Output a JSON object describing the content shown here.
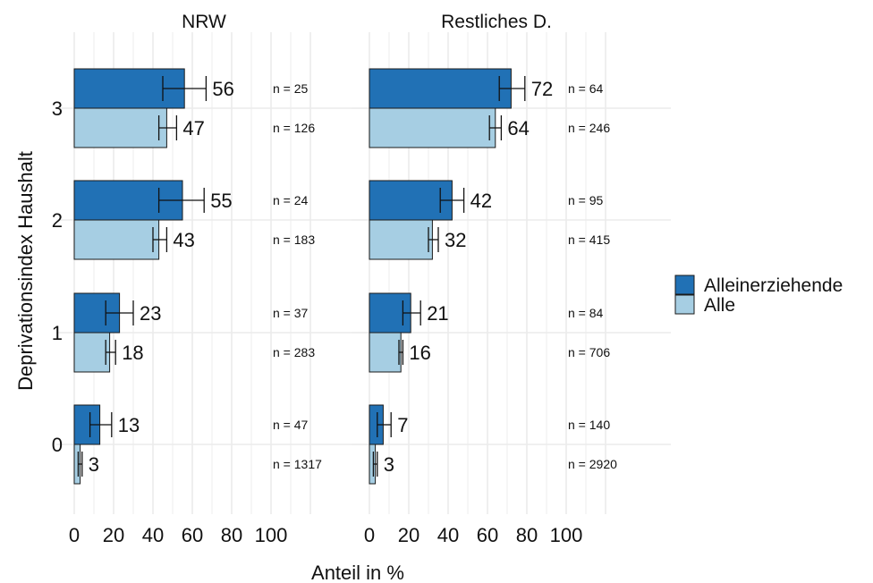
{
  "chart_data": {
    "type": "bar",
    "orientation": "horizontal",
    "ylabel": "Deprivationsindex Haushalt",
    "xlabel": "Anteil in %",
    "categories": [
      "0",
      "1",
      "2",
      "3"
    ],
    "xlim": [
      0,
      100
    ],
    "x_ticks": [
      "0",
      "20",
      "40",
      "60",
      "80",
      "100"
    ],
    "grid": true,
    "legend_position": "right",
    "legend": [
      {
        "name": "Alleinerziehende",
        "color": "#2171b5"
      },
      {
        "name": "Alle",
        "color": "#a6cee3"
      }
    ],
    "panels": [
      {
        "title": "NRW",
        "series": [
          {
            "name": "Alleinerziehende",
            "values": [
              13,
              23,
              55,
              56
            ],
            "labels": [
              "13",
              "23",
              "55",
              "56"
            ],
            "error_low": [
              8,
              16,
              43,
              45
            ],
            "error_high": [
              19,
              30,
              66,
              67
            ],
            "n_labels": [
              "n = 47",
              "n = 37",
              "n = 24",
              "n = 25"
            ]
          },
          {
            "name": "Alle",
            "values": [
              3,
              18,
              43,
              47
            ],
            "labels": [
              "3",
              "18",
              "43",
              "47"
            ],
            "error_low": [
              2,
              16,
              40,
              43
            ],
            "error_high": [
              4,
              21,
              47,
              52
            ],
            "n_labels": [
              "n = 1317",
              "n = 283",
              "n = 183",
              "n = 126"
            ]
          }
        ]
      },
      {
        "title": "Restliches D.",
        "series": [
          {
            "name": "Alleinerziehende",
            "values": [
              7,
              21,
              42,
              72
            ],
            "labels": [
              "7",
              "21",
              "42",
              "72"
            ],
            "error_low": [
              4,
              17,
              36,
              66
            ],
            "error_high": [
              11,
              26,
              48,
              79
            ],
            "n_labels": [
              "n = 140",
              "n = 84",
              "n = 95",
              "n = 64"
            ]
          },
          {
            "name": "Alle",
            "values": [
              3,
              16,
              32,
              64
            ],
            "labels": [
              "3",
              "16",
              "32",
              "64"
            ],
            "error_low": [
              2,
              15,
              30,
              61
            ],
            "error_high": [
              4,
              17,
              35,
              67
            ],
            "n_labels": [
              "n = 2920",
              "n = 706",
              "n = 415",
              "n = 246"
            ]
          }
        ]
      }
    ]
  }
}
